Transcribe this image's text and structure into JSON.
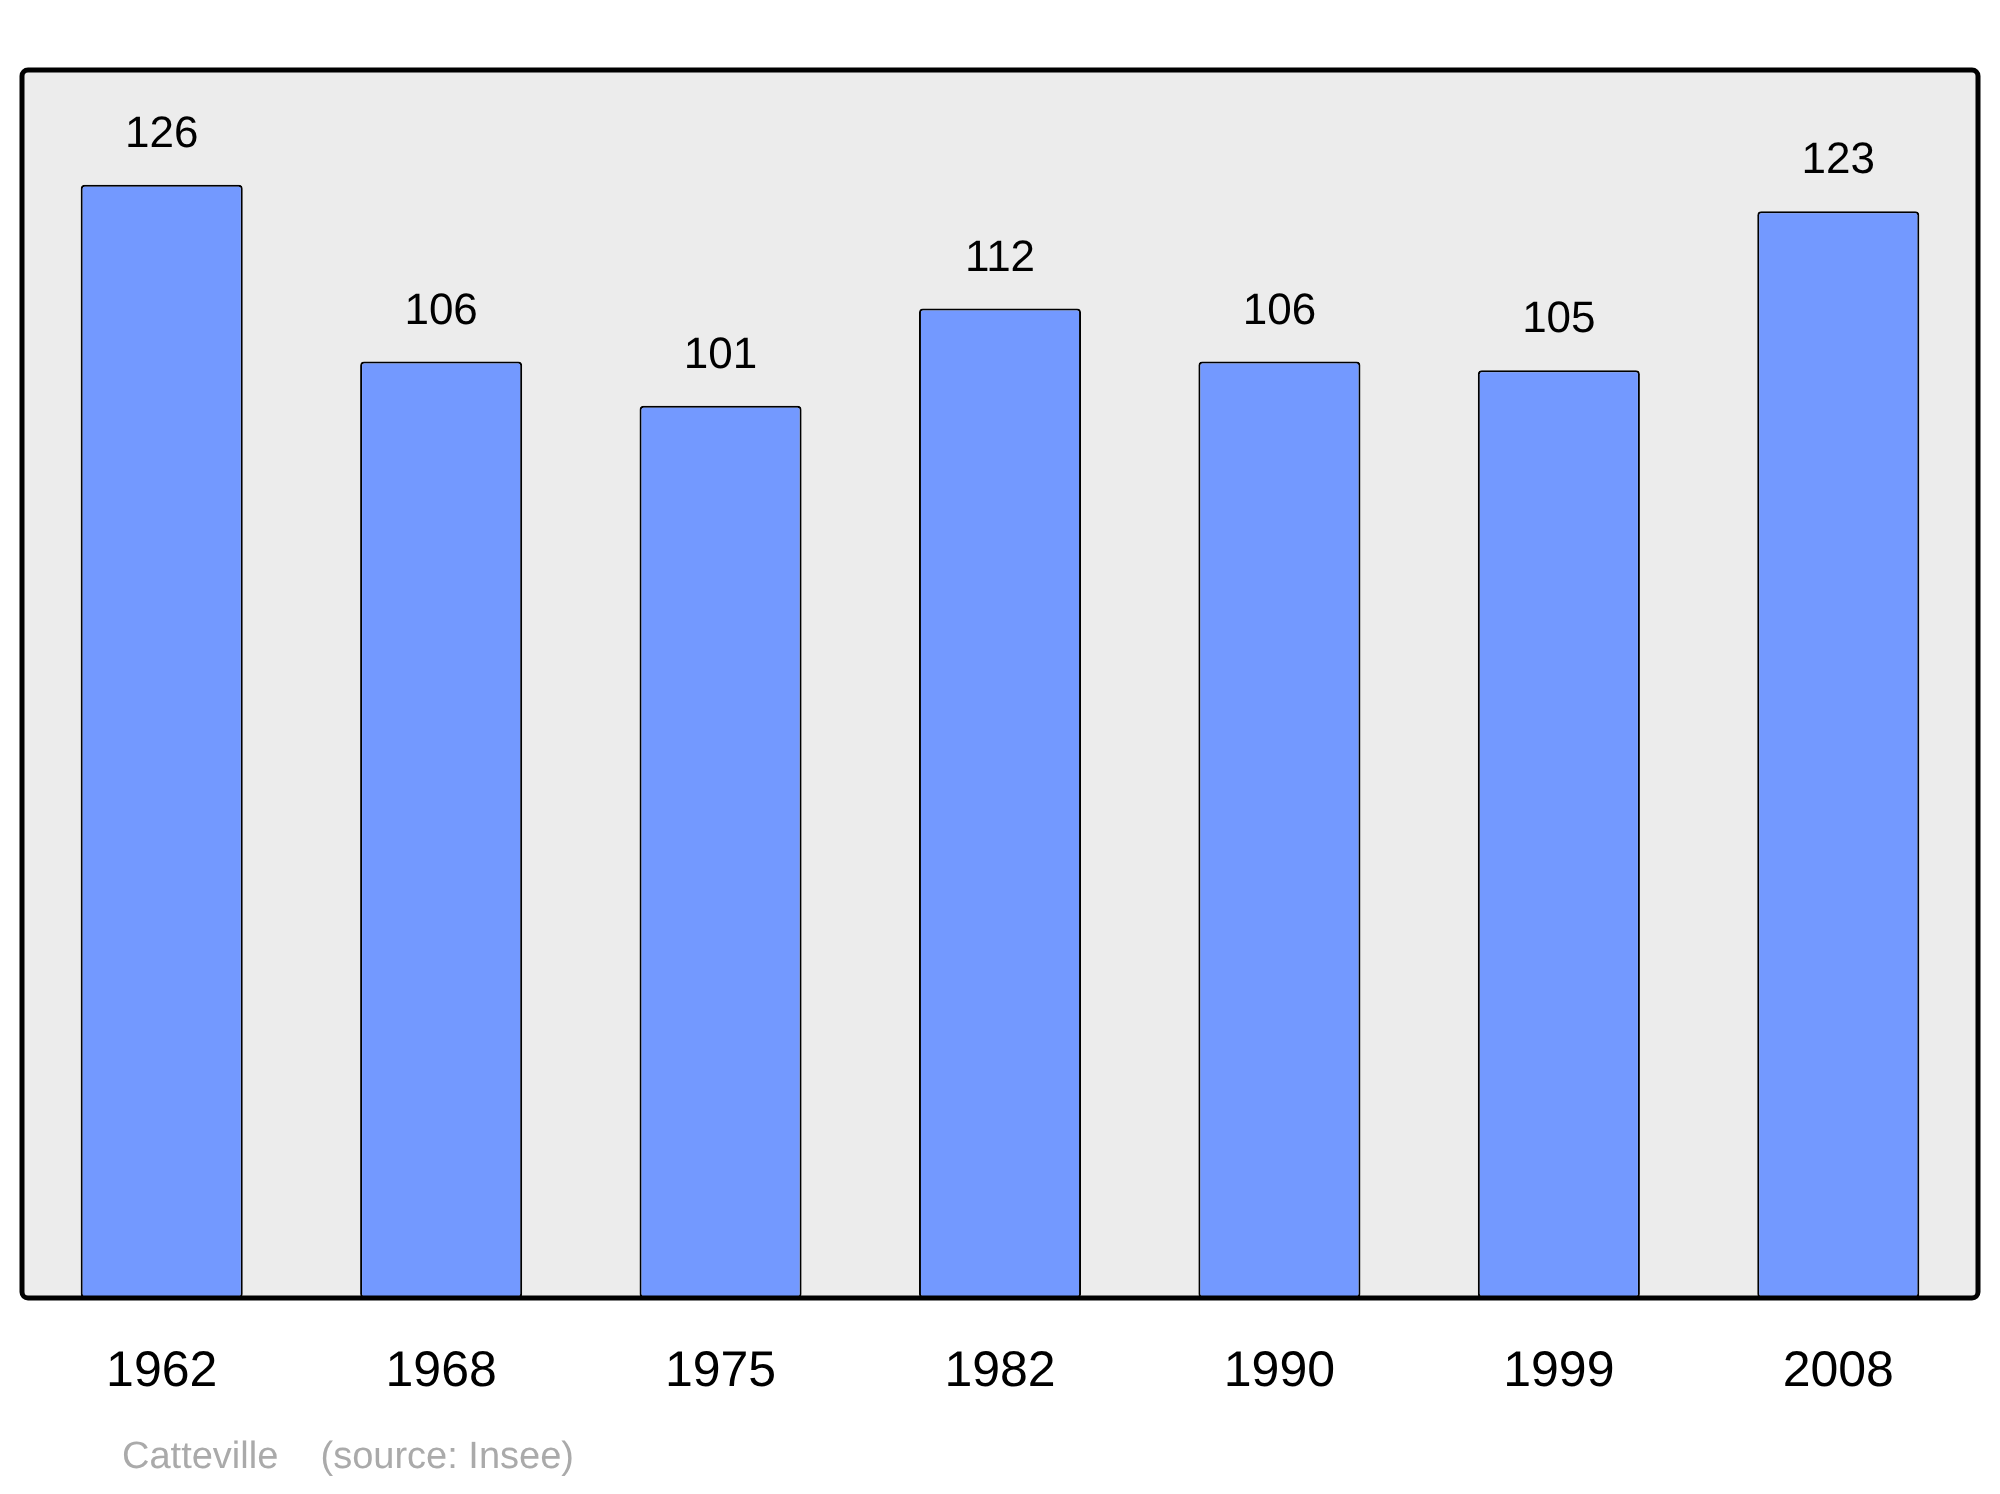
{
  "chart_data": {
    "type": "bar",
    "categories": [
      "1962",
      "1968",
      "1975",
      "1982",
      "1990",
      "1999",
      "2008"
    ],
    "values": [
      126,
      106,
      101,
      112,
      106,
      105,
      123
    ],
    "color": "#7399ff",
    "ylim": [
      0,
      139
    ],
    "data_labels": true,
    "grid": false,
    "legend": false,
    "tick_labels": "x",
    "annotations": [
      "Catteville    (source: Insee)"
    ]
  }
}
